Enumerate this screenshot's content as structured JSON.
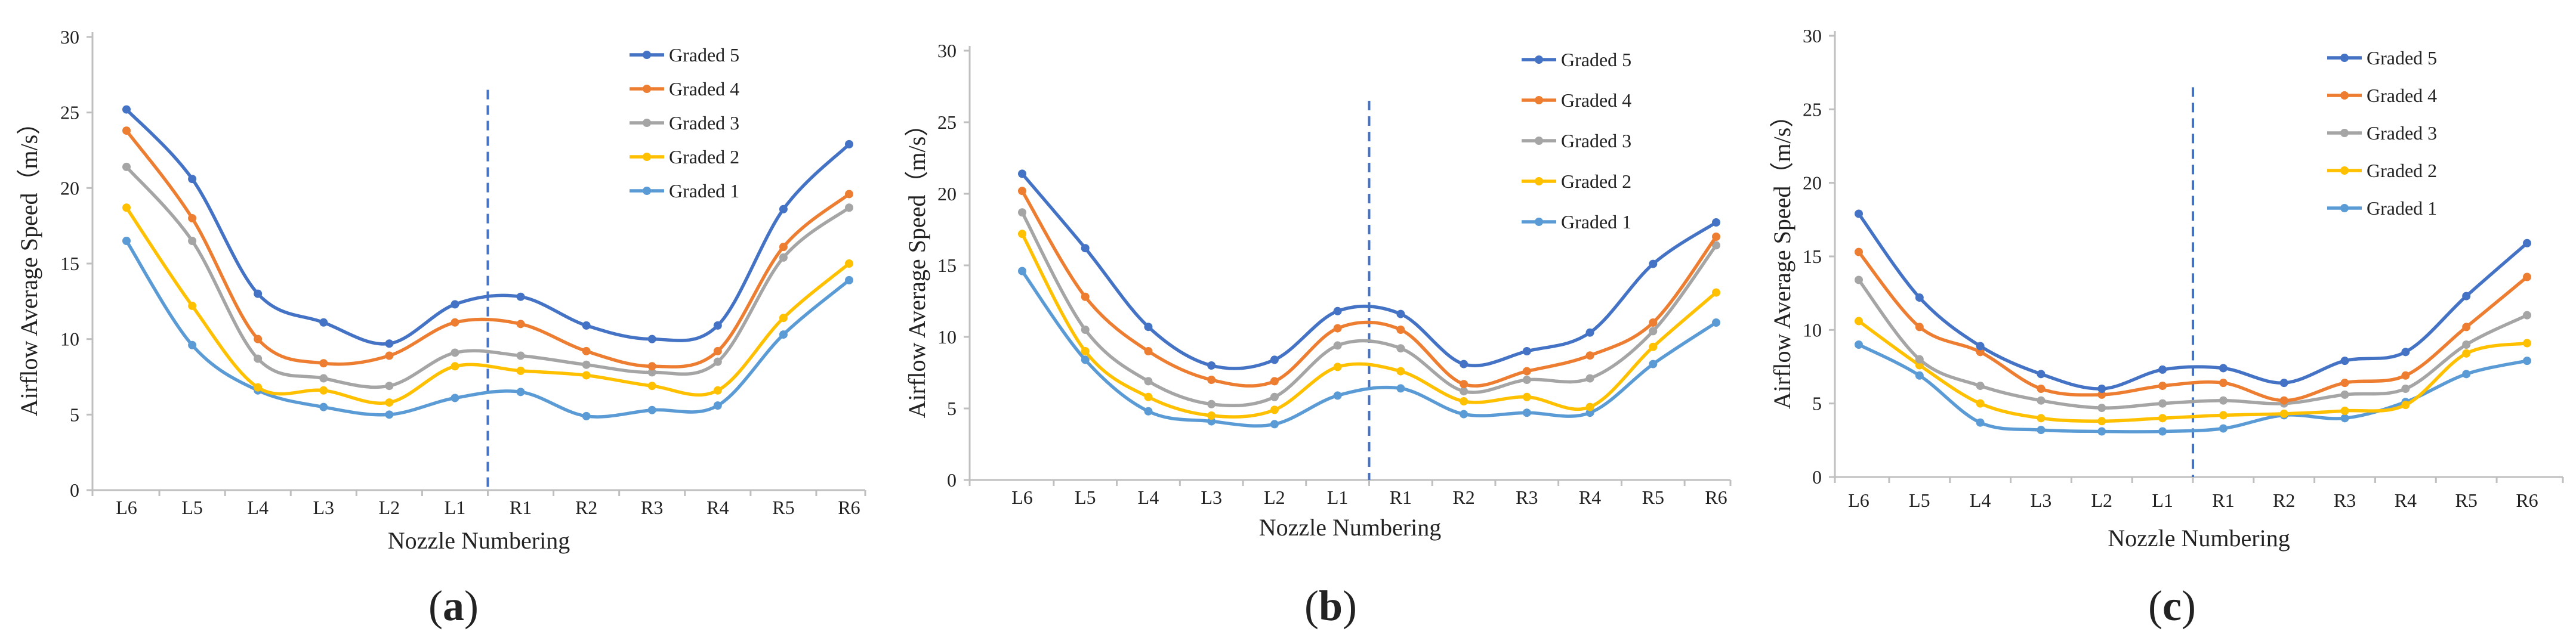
{
  "colors": {
    "graded_5": "#4472C4",
    "graded_4": "#ED7D31",
    "graded_3": "#A5A5A5",
    "graded_2": "#FFC000",
    "graded_1": "#5B9BD5",
    "divider": "#4472C4",
    "axis": "#BFBFBF"
  },
  "chart_data": [
    {
      "type": "line",
      "panel_label": "(a)",
      "panel_letter": "a",
      "xlabel": "Nozzle Numbering",
      "ylabel": "Airflow Average Speed（m/s）",
      "categories": [
        "L6",
        "L5",
        "L4",
        "L3",
        "L2",
        "L1",
        "R1",
        "R2",
        "R3",
        "R4",
        "R5",
        "R6"
      ],
      "ylim": [
        0,
        30
      ],
      "yticks": [
        0,
        5,
        10,
        15,
        20,
        25,
        30
      ],
      "divider_between": [
        "L1",
        "R1"
      ],
      "legend_position": "top-right",
      "series": [
        {
          "name": "Graded 5",
          "values": [
            25.2,
            20.6,
            13.0,
            11.1,
            9.7,
            12.3,
            12.8,
            10.9,
            10.0,
            10.9,
            18.6,
            22.9
          ]
        },
        {
          "name": "Graded 4",
          "values": [
            23.8,
            18.0,
            10.0,
            8.4,
            8.9,
            11.1,
            11.0,
            9.2,
            8.2,
            9.2,
            16.1,
            19.6
          ]
        },
        {
          "name": "Graded 3",
          "values": [
            21.4,
            16.5,
            8.7,
            7.4,
            6.9,
            9.1,
            8.9,
            8.3,
            7.8,
            8.5,
            15.4,
            18.7
          ]
        },
        {
          "name": "Graded 2",
          "values": [
            18.7,
            12.2,
            6.8,
            6.6,
            5.8,
            8.2,
            7.9,
            7.6,
            6.9,
            6.6,
            11.4,
            15.0
          ]
        },
        {
          "name": "Graded 1",
          "values": [
            16.5,
            9.6,
            6.6,
            5.5,
            5.0,
            6.1,
            6.5,
            4.9,
            5.3,
            5.6,
            10.3,
            13.9
          ]
        }
      ]
    },
    {
      "type": "line",
      "panel_label": "(b)",
      "panel_letter": "b",
      "xlabel": "Nozzle Numbering",
      "ylabel": "Airflow Average Speed（m/s）",
      "categories": [
        "L6",
        "L5",
        "L4",
        "L3",
        "L2",
        "L1",
        "R1",
        "R2",
        "R3",
        "R4",
        "R5",
        "R6"
      ],
      "ylim": [
        0,
        30
      ],
      "yticks": [
        0,
        5,
        10,
        15,
        20,
        25,
        30
      ],
      "divider_between": [
        "L1",
        "R1"
      ],
      "legend_position": "top-right",
      "series": [
        {
          "name": "Graded 5",
          "values": [
            21.4,
            16.2,
            10.7,
            8.0,
            8.4,
            11.8,
            11.6,
            8.1,
            9.0,
            10.3,
            15.1,
            18.0
          ]
        },
        {
          "name": "Graded 4",
          "values": [
            20.2,
            12.8,
            9.0,
            7.0,
            6.9,
            10.6,
            10.5,
            6.7,
            7.6,
            8.7,
            11.0,
            17.0
          ]
        },
        {
          "name": "Graded 3",
          "values": [
            18.7,
            10.5,
            6.9,
            5.3,
            5.8,
            9.4,
            9.2,
            6.2,
            7.0,
            7.1,
            10.4,
            16.4
          ]
        },
        {
          "name": "Graded 2",
          "values": [
            17.2,
            9.0,
            5.8,
            4.5,
            4.9,
            7.9,
            7.6,
            5.5,
            5.8,
            5.1,
            9.3,
            13.1
          ]
        },
        {
          "name": "Graded 1",
          "values": [
            14.6,
            8.4,
            4.8,
            4.1,
            3.9,
            5.9,
            6.4,
            4.6,
            4.7,
            4.7,
            8.1,
            11.0
          ]
        }
      ]
    },
    {
      "type": "line",
      "panel_label": "(c)",
      "panel_letter": "c",
      "xlabel": "Nozzle Numbering",
      "ylabel": "Airflow Average Speed（m/s）",
      "categories": [
        "L6",
        "L5",
        "L4",
        "L3",
        "L2",
        "L1",
        "R1",
        "R2",
        "R3",
        "R4",
        "R5",
        "R6"
      ],
      "ylim": [
        0,
        30
      ],
      "yticks": [
        0,
        5,
        10,
        15,
        20,
        25,
        30
      ],
      "divider_between": [
        "L1",
        "R1"
      ],
      "legend_position": "top-right",
      "series": [
        {
          "name": "Graded 5",
          "values": [
            17.9,
            12.2,
            8.9,
            7.0,
            6.0,
            7.3,
            7.4,
            6.4,
            7.9,
            8.5,
            12.3,
            15.9
          ]
        },
        {
          "name": "Graded 4",
          "values": [
            15.3,
            10.2,
            8.5,
            6.0,
            5.6,
            6.2,
            6.4,
            5.2,
            6.4,
            6.9,
            10.2,
            13.6
          ]
        },
        {
          "name": "Graded 3",
          "values": [
            13.4,
            8.0,
            6.2,
            5.2,
            4.7,
            5.0,
            5.2,
            5.0,
            5.6,
            6.0,
            9.0,
            11.0
          ]
        },
        {
          "name": "Graded 2",
          "values": [
            10.6,
            7.6,
            5.0,
            4.0,
            3.8,
            4.0,
            4.2,
            4.3,
            4.5,
            4.9,
            8.4,
            9.1
          ]
        },
        {
          "name": "Graded 1",
          "values": [
            9.0,
            6.9,
            3.7,
            3.2,
            3.1,
            3.1,
            3.3,
            4.2,
            4.0,
            5.1,
            7.0,
            7.9
          ]
        }
      ]
    }
  ]
}
